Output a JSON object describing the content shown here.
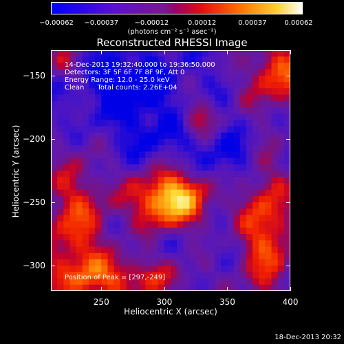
{
  "chart_data": {
    "type": "heatmap",
    "title": "Reconstructed RHESSI Image",
    "xlabel": "Heliocentric X (arcsec)",
    "ylabel": "Heliocentric Y (arcsec)",
    "xlim": [
      210,
      400
    ],
    "ylim": [
      -320,
      -130
    ],
    "xticks": [
      "250",
      "300",
      "350",
      "400"
    ],
    "yticks": [
      "-150",
      "-200",
      "-250",
      "-300"
    ],
    "colorbar": {
      "ticks": [
        "-0.00062",
        "-0.00037",
        "-0.00012",
        "0.00012",
        "0.00037",
        "0.00062"
      ],
      "unit": "(photons cm⁻² s⁻¹ asec⁻²)",
      "range": [
        -0.00062,
        0.00062
      ]
    },
    "annotations": {
      "time_range": "14-Dec-2013 19:32:40.000 to 19:36:50.000",
      "detectors": "Detectors: 3F 5F 6F 7F 8F 9F, Att 0",
      "energy": "Energy Range: 12.0 - 25.0 keV",
      "clean": "Clean      Total counts: 2.26E+04",
      "peak": "Position of Peak = [297,-249]"
    },
    "peak": [
      297,
      -249
    ]
  },
  "footer": {
    "timestamp": "18-Dec-2013 20:32"
  }
}
